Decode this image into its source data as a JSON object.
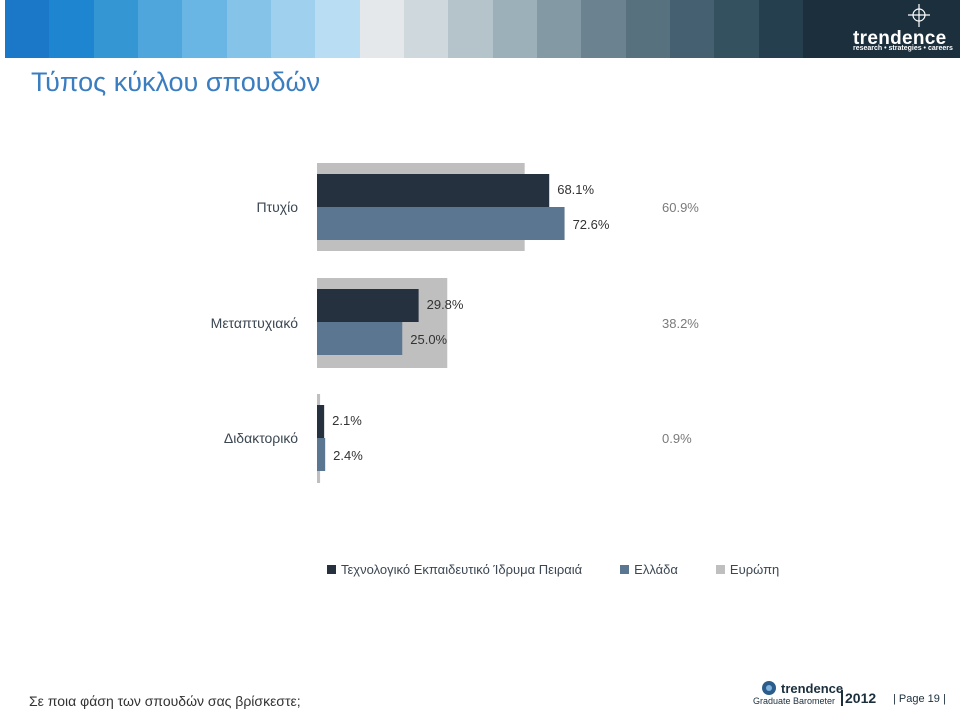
{
  "header": {
    "brand_name": "trendence",
    "brand_tagline": "research • strategies • careers",
    "swatches": [
      "#1b78c8",
      "#1e86d0",
      "#3596d4",
      "#4ea6dc",
      "#69b5e3",
      "#85c3e8",
      "#9fd0ee",
      "#b9ddf2",
      "#e4e8ea",
      "#cfd8dd",
      "#b5c4cb",
      "#9cb0b9",
      "#8399a4",
      "#6b8390",
      "#58717e",
      "#456070",
      "#345160",
      "#263f4e"
    ]
  },
  "title": "Τύπος κύκλου σπουδών",
  "chart_data": {
    "type": "bar",
    "orientation": "horizontal",
    "categories": [
      "Πτυχίο",
      "Μεταπτυχιακό",
      "Διδακτορικό"
    ],
    "series": [
      {
        "name": "Τεχνολογικό Εκπαιδευτικό Ίδρυμα Πειραιά",
        "values": [
          68.1,
          29.8,
          2.1
        ],
        "labels": [
          "68.1%",
          "29.8%",
          "2.1%"
        ],
        "color": "#26313f"
      },
      {
        "name": "Ελλάδα",
        "values": [
          72.6,
          25.0,
          2.4
        ],
        "labels": [
          "72.6%",
          "25.0%",
          "2.4%"
        ],
        "color": "#5a7690"
      },
      {
        "name": "Ευρώπη",
        "values": [
          60.9,
          38.2,
          0.9
        ],
        "labels": [
          "60.9%",
          "38.2%",
          "0.9%"
        ],
        "color": "#bfbfbf"
      }
    ],
    "xlim": [
      0,
      100
    ],
    "grid": false,
    "legend_position": "bottom"
  },
  "footer": {
    "question": "Σε ποια φάση των σπουδών σας βρίσκεστε;",
    "logo_name": "trendence",
    "logo_sub": "Graduate Barometer",
    "logo_year": "2012",
    "page_label": "| Page 19 |"
  }
}
